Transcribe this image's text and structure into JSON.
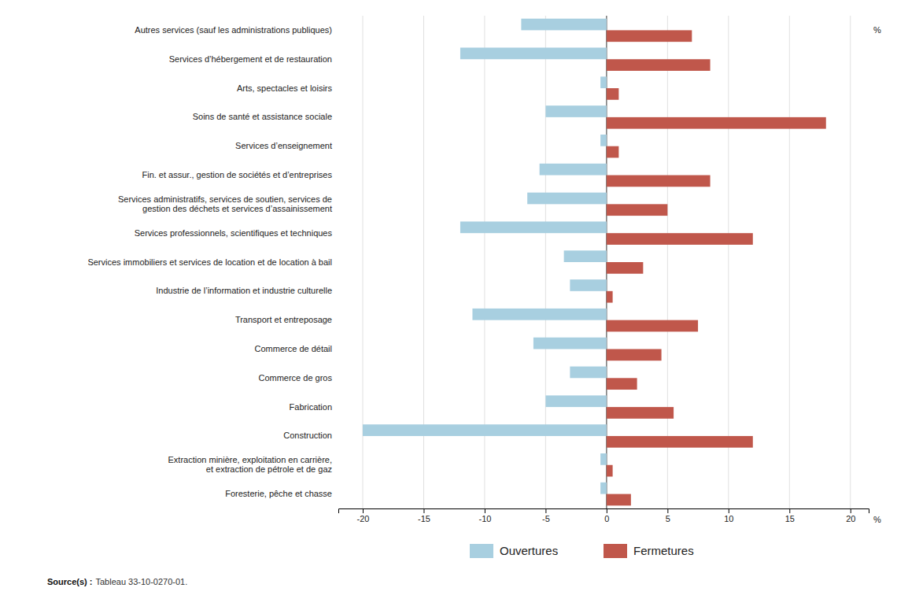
{
  "chart_data": {
    "type": "bar",
    "orientation": "horizontal",
    "categories": [
      "Autres services (sauf les administrations publiques)",
      "Services d’hébergement et de restauration",
      "Arts, spectacles et loisirs",
      "Soins de santé et assistance sociale",
      "Services d’enseignement",
      "Fin. et assur., gestion de sociétés et d’entreprises",
      "Services administratifs, services de soutien, services de\ngestion des déchets et services d’assainissement",
      "Services professionnels, scientifiques et techniques",
      "Services immobiliers et services de location et de location à bail",
      "Industrie de l’information et industrie culturelle",
      "Transport et entreposage",
      "Commerce de détail",
      "Commerce de gros",
      "Fabrication",
      "Construction",
      "Extraction minière, exploitation en carrière,\net extraction de pétrole et de gaz",
      "Foresterie, pêche et chasse"
    ],
    "series": [
      {
        "name": "Ouvertures",
        "color": "#a8cfe0",
        "values": [
          -7.0,
          -12.0,
          -0.5,
          -5.0,
          -0.5,
          -5.5,
          -6.5,
          -12.0,
          -3.5,
          -3.0,
          -11.0,
          -6.0,
          -3.0,
          -5.0,
          -20.0,
          -0.5,
          -0.5
        ]
      },
      {
        "name": "Fermetures",
        "color": "#c0574b",
        "values": [
          7.0,
          8.5,
          1.0,
          18.0,
          1.0,
          8.5,
          5.0,
          12.0,
          3.0,
          0.5,
          7.5,
          4.5,
          2.5,
          5.5,
          12.0,
          0.5,
          2.0
        ]
      }
    ],
    "xlim": [
      -22,
      21.5
    ],
    "xticks": [
      -20,
      -15,
      -10,
      -5,
      0,
      5,
      10,
      15,
      20
    ],
    "xlabel": "%",
    "annotations": [
      "%"
    ],
    "source": [
      "Source(s) :",
      "Tableau 33-10-0270-01."
    ],
    "grid": true,
    "legend": "bottom"
  }
}
